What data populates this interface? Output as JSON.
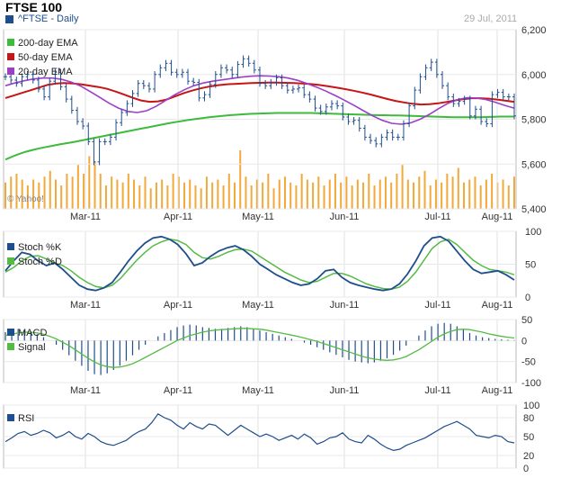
{
  "header": {
    "title": "FTSE 100",
    "ticker": "^FTSE - Daily",
    "date": "29 Jul, 2011",
    "watermark": "© Yahoo!"
  },
  "colors": {
    "price": "#1f4e8c",
    "ema200": "#3cbb3c",
    "ema50": "#c81414",
    "ema20": "#9b3fc8",
    "volume": "#f2a93b",
    "stochK": "#1f4e8c",
    "stochD": "#55bb44",
    "macd": "#1f4e8c",
    "signal": "#55bb44",
    "rsi": "#1f4e8c"
  },
  "x_axis": {
    "month_labels": [
      "Mar-11",
      "Apr-11",
      "May-11",
      "Jun-11",
      "Jul-11",
      "Aug-11"
    ]
  },
  "chart_data": [
    {
      "type": "line",
      "panel": "price",
      "title": "FTSE 100",
      "ylim": [
        5400,
        6200
      ],
      "yticks": [
        "6,200",
        "6,000",
        "5,800",
        "5,600",
        "5,400"
      ],
      "legend": [
        "200-day EMA",
        "50-day EMA",
        "20-day EMA"
      ],
      "series": [
        {
          "name": "^FTSE - Daily",
          "values": [
            5990,
            5975,
            5960,
            5990,
            6000,
            5975,
            5935,
            5900,
            5970,
            6010,
            5945,
            5890,
            5840,
            5790,
            5770,
            5700,
            5610,
            5700,
            5700,
            5720,
            5785,
            5830,
            5870,
            5915,
            5960,
            5950,
            5935,
            6000,
            6030,
            6050,
            6010,
            6000,
            6010,
            5970,
            5965,
            5895,
            5910,
            5955,
            6000,
            6030,
            6020,
            6000,
            6045,
            6070,
            6050,
            6020,
            5960,
            5950,
            5965,
            5985,
            5950,
            5930,
            5935,
            5940,
            5910,
            5890,
            5850,
            5835,
            5855,
            5870,
            5860,
            5810,
            5790,
            5795,
            5760,
            5720,
            5705,
            5690,
            5720,
            5740,
            5720,
            5720,
            5780,
            5860,
            5930,
            5990,
            6030,
            6055,
            6000,
            5950,
            5900,
            5870,
            5880,
            5890,
            5815,
            5845,
            5790,
            5780,
            5910,
            5920,
            5900,
            5900,
            5815
          ]
        },
        {
          "name": "200-day EMA",
          "values": [
            5620,
            5633,
            5645,
            5655,
            5663,
            5670,
            5676,
            5682,
            5688,
            5693,
            5698,
            5704,
            5710,
            5716,
            5722,
            5728,
            5734,
            5740,
            5746,
            5752,
            5758,
            5764,
            5770,
            5776,
            5782,
            5787,
            5792,
            5797,
            5801,
            5805,
            5809,
            5812,
            5815,
            5818,
            5820,
            5822,
            5824,
            5825,
            5826,
            5827,
            5828,
            5828,
            5828,
            5828,
            5828,
            5828,
            5827,
            5826,
            5825,
            5824,
            5823,
            5822,
            5821,
            5820,
            5819,
            5818,
            5818,
            5817,
            5817,
            5816,
            5815,
            5814,
            5813,
            5812,
            5811,
            5810,
            5809,
            5809,
            5809,
            5809,
            5809,
            5810,
            5811,
            5812,
            5812,
            5812
          ]
        },
        {
          "name": "50-day EMA",
          "values": [
            5895,
            5906,
            5918,
            5930,
            5942,
            5954,
            5960,
            5962,
            5960,
            5956,
            5950,
            5944,
            5936,
            5924,
            5910,
            5896,
            5884,
            5878,
            5880,
            5888,
            5902,
            5916,
            5928,
            5938,
            5946,
            5952,
            5956,
            5958,
            5960,
            5962,
            5963,
            5964,
            5964,
            5963,
            5962,
            5960,
            5957,
            5953,
            5948,
            5942,
            5935,
            5928,
            5920,
            5911,
            5901,
            5891,
            5882,
            5875,
            5869,
            5866,
            5867,
            5871,
            5877,
            5884,
            5890,
            5894,
            5894,
            5892,
            5888,
            5883,
            5878
          ]
        },
        {
          "name": "20-day EMA",
          "values": [
            5950,
            5962,
            5972,
            5980,
            5984,
            5984,
            5978,
            5966,
            5948,
            5924,
            5898,
            5872,
            5850,
            5835,
            5830,
            5838,
            5858,
            5884,
            5910,
            5932,
            5950,
            5962,
            5970,
            5976,
            5982,
            5988,
            5992,
            5994,
            5993,
            5990,
            5984,
            5974,
            5960,
            5944,
            5926,
            5906,
            5885,
            5862,
            5838,
            5815,
            5795,
            5782,
            5778,
            5784,
            5800,
            5822,
            5848,
            5872,
            5888,
            5896,
            5895,
            5888,
            5876,
            5862,
            5850
          ]
        },
        {
          "name": "Volume",
          "values": [
            0.45,
            0.55,
            0.6,
            0.5,
            0.4,
            0.5,
            0.45,
            0.55,
            0.65,
            0.5,
            0.4,
            0.6,
            0.55,
            0.75,
            0.6,
            0.9,
            0.8,
            0.6,
            0.4,
            0.55,
            0.5,
            0.45,
            0.6,
            0.5,
            0.4,
            0.55,
            0.35,
            0.45,
            0.5,
            0.4,
            0.6,
            0.55,
            0.45,
            0.5,
            0.4,
            0.35,
            0.55,
            0.45,
            0.5,
            0.4,
            0.6,
            0.45,
            1.0,
            0.55,
            0.4,
            0.5,
            0.45,
            0.6,
            0.35,
            0.5,
            0.55,
            0.45,
            0.4,
            0.6,
            0.5,
            0.45,
            0.55,
            0.4,
            0.5,
            0.6,
            0.45,
            0.55,
            0.4,
            0.5,
            0.45,
            0.6,
            0.4,
            0.5,
            0.55,
            0.45,
            0.6,
            0.75,
            0.5,
            0.45,
            0.55,
            0.65,
            0.4,
            0.5,
            0.45,
            0.6,
            0.55,
            0.7,
            0.45,
            0.5,
            0.55,
            0.4,
            0.5,
            0.6,
            0.45,
            0.5,
            0.4,
            0.55
          ]
        }
      ]
    },
    {
      "type": "line",
      "panel": "stochastic",
      "ylim": [
        0,
        100
      ],
      "yticks": [
        "100",
        "50",
        "0"
      ],
      "legend": [
        "Stoch %K",
        "Stoch %D"
      ],
      "series": [
        {
          "name": "Stoch %K",
          "values": [
            40,
            55,
            68,
            65,
            55,
            48,
            52,
            42,
            30,
            18,
            12,
            10,
            14,
            22,
            38,
            55,
            70,
            82,
            90,
            92,
            88,
            80,
            66,
            48,
            52,
            62,
            70,
            75,
            78,
            72,
            62,
            50,
            42,
            34,
            28,
            22,
            18,
            20,
            28,
            40,
            42,
            30,
            22,
            18,
            15,
            12,
            10,
            12,
            20,
            35,
            55,
            78,
            90,
            92,
            85,
            70,
            55,
            42,
            36,
            38,
            40,
            34,
            26
          ]
        },
        {
          "name": "Stoch %D",
          "values": [
            38,
            45,
            55,
            62,
            63,
            58,
            52,
            48,
            40,
            30,
            22,
            16,
            14,
            18,
            28,
            42,
            56,
            68,
            78,
            84,
            88,
            86,
            80,
            68,
            60,
            58,
            62,
            68,
            72,
            73,
            70,
            62,
            54,
            46,
            38,
            32,
            26,
            22,
            24,
            30,
            36,
            36,
            32,
            26,
            20,
            16,
            13,
            12,
            15,
            24,
            38,
            56,
            74,
            84,
            88,
            80,
            68,
            56,
            48,
            42,
            40,
            38,
            34
          ]
        }
      ]
    },
    {
      "type": "bar",
      "panel": "macd",
      "ylim": [
        -100,
        50
      ],
      "yticks": [
        "50",
        "0",
        "-50",
        "-100"
      ],
      "legend": [
        "MACD",
        "Signal"
      ],
      "series": [
        {
          "name": "MACD",
          "values": [
            20,
            25,
            28,
            25,
            20,
            15,
            8,
            0,
            -10,
            -22,
            -35,
            -48,
            -60,
            -72,
            -80,
            -82,
            -78,
            -70,
            -60,
            -48,
            -35,
            -22,
            -10,
            0,
            10,
            18,
            25,
            32,
            36,
            38,
            36,
            32,
            30,
            28,
            28,
            30,
            32,
            34,
            32,
            28,
            24,
            20,
            16,
            12,
            8,
            4,
            0,
            -5,
            -10,
            -16,
            -22,
            -28,
            -34,
            -40,
            -46,
            -50,
            -52,
            -54,
            -52,
            -48,
            -42,
            -34,
            -24,
            -12,
            0,
            12,
            24,
            34,
            40,
            42,
            40,
            34,
            26,
            18,
            12,
            8,
            6,
            4,
            3,
            2,
            1
          ]
        },
        {
          "name": "Signal",
          "values": [
            12,
            15,
            18,
            20,
            20,
            18,
            15,
            10,
            4,
            -4,
            -12,
            -22,
            -32,
            -42,
            -51,
            -58,
            -62,
            -64,
            -63,
            -60,
            -55,
            -48,
            -40,
            -32,
            -24,
            -16,
            -8,
            0,
            6,
            12,
            16,
            20,
            23,
            25,
            26,
            27,
            28,
            29,
            29,
            28,
            27,
            25,
            22,
            19,
            16,
            13,
            10,
            6,
            2,
            -2,
            -7,
            -12,
            -17,
            -22,
            -27,
            -32,
            -37,
            -41,
            -44,
            -46,
            -47,
            -46,
            -43,
            -38,
            -30,
            -22,
            -12,
            -2,
            8,
            16,
            22,
            26,
            27,
            26,
            23,
            20,
            16,
            13,
            10,
            8,
            6
          ]
        }
      ]
    },
    {
      "type": "line",
      "panel": "rsi",
      "ylim": [
        0,
        100
      ],
      "yticks": [
        "100",
        "80",
        "50",
        "20",
        "0"
      ],
      "legend": [
        "RSI"
      ],
      "series": [
        {
          "name": "RSI",
          "values": [
            42,
            48,
            55,
            58,
            52,
            55,
            60,
            56,
            48,
            52,
            58,
            50,
            46,
            55,
            50,
            42,
            38,
            36,
            40,
            44,
            52,
            58,
            62,
            72,
            86,
            80,
            76,
            68,
            62,
            72,
            66,
            62,
            70,
            68,
            60,
            52,
            60,
            68,
            62,
            56,
            50,
            54,
            50,
            44,
            48,
            52,
            46,
            54,
            48,
            38,
            42,
            48,
            50,
            56,
            46,
            42,
            40,
            52,
            46,
            38,
            32,
            28,
            30,
            36,
            40,
            44,
            48,
            54,
            60,
            66,
            70,
            74,
            68,
            62,
            52,
            50,
            48,
            52,
            50,
            42,
            40
          ]
        }
      ]
    }
  ]
}
